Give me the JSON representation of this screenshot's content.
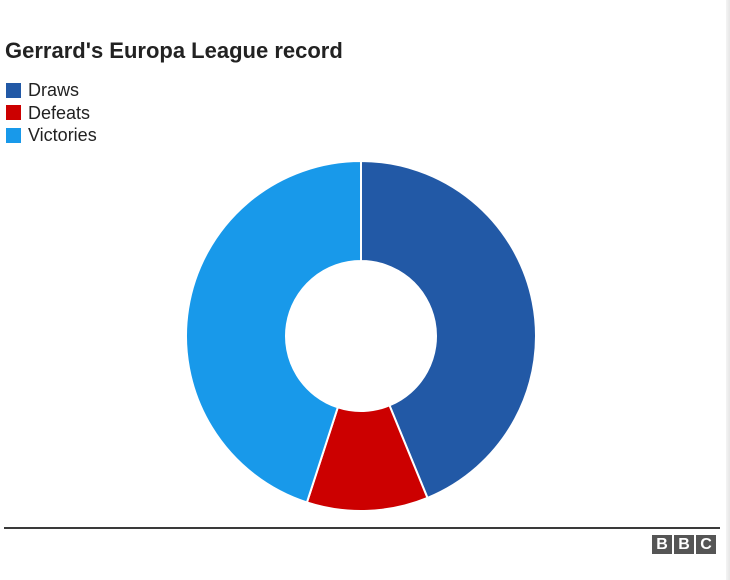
{
  "chart_data": {
    "type": "pie",
    "donut": true,
    "title": "Gerrard's Europa League record",
    "legend_position": "top-left",
    "series": [
      {
        "name": "Draws",
        "value": 43.8,
        "color": "#2259a6"
      },
      {
        "name": "Defeats",
        "value": 11.2,
        "color": "#cc0000"
      },
      {
        "name": "Victories",
        "value": 45.0,
        "color": "#1899ea"
      }
    ]
  },
  "branding": {
    "logo_letters": [
      "B",
      "B",
      "C"
    ]
  }
}
